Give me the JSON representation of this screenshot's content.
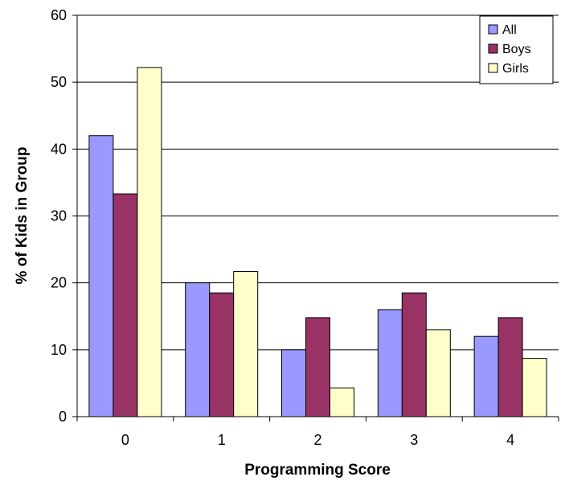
{
  "chart_data": {
    "type": "bar",
    "title": "",
    "xlabel": "Programming Score",
    "ylabel": "% of Kids in Group",
    "categories": [
      "0",
      "1",
      "2",
      "3",
      "4"
    ],
    "ylim": [
      0,
      60
    ],
    "yticks": [
      "0",
      "10",
      "20",
      "30",
      "40",
      "50",
      "60"
    ],
    "grid": true,
    "legend_position": "top-right",
    "series": [
      {
        "name": "All",
        "color": "#9999ff",
        "values": [
          42.0,
          20.0,
          10.0,
          16.0,
          12.0
        ]
      },
      {
        "name": "Boys",
        "color": "#993366",
        "values": [
          33.3,
          18.5,
          14.8,
          18.5,
          14.8
        ]
      },
      {
        "name": "Girls",
        "color": "#ffffcc",
        "values": [
          52.2,
          21.7,
          4.3,
          13.0,
          8.7
        ]
      }
    ]
  }
}
